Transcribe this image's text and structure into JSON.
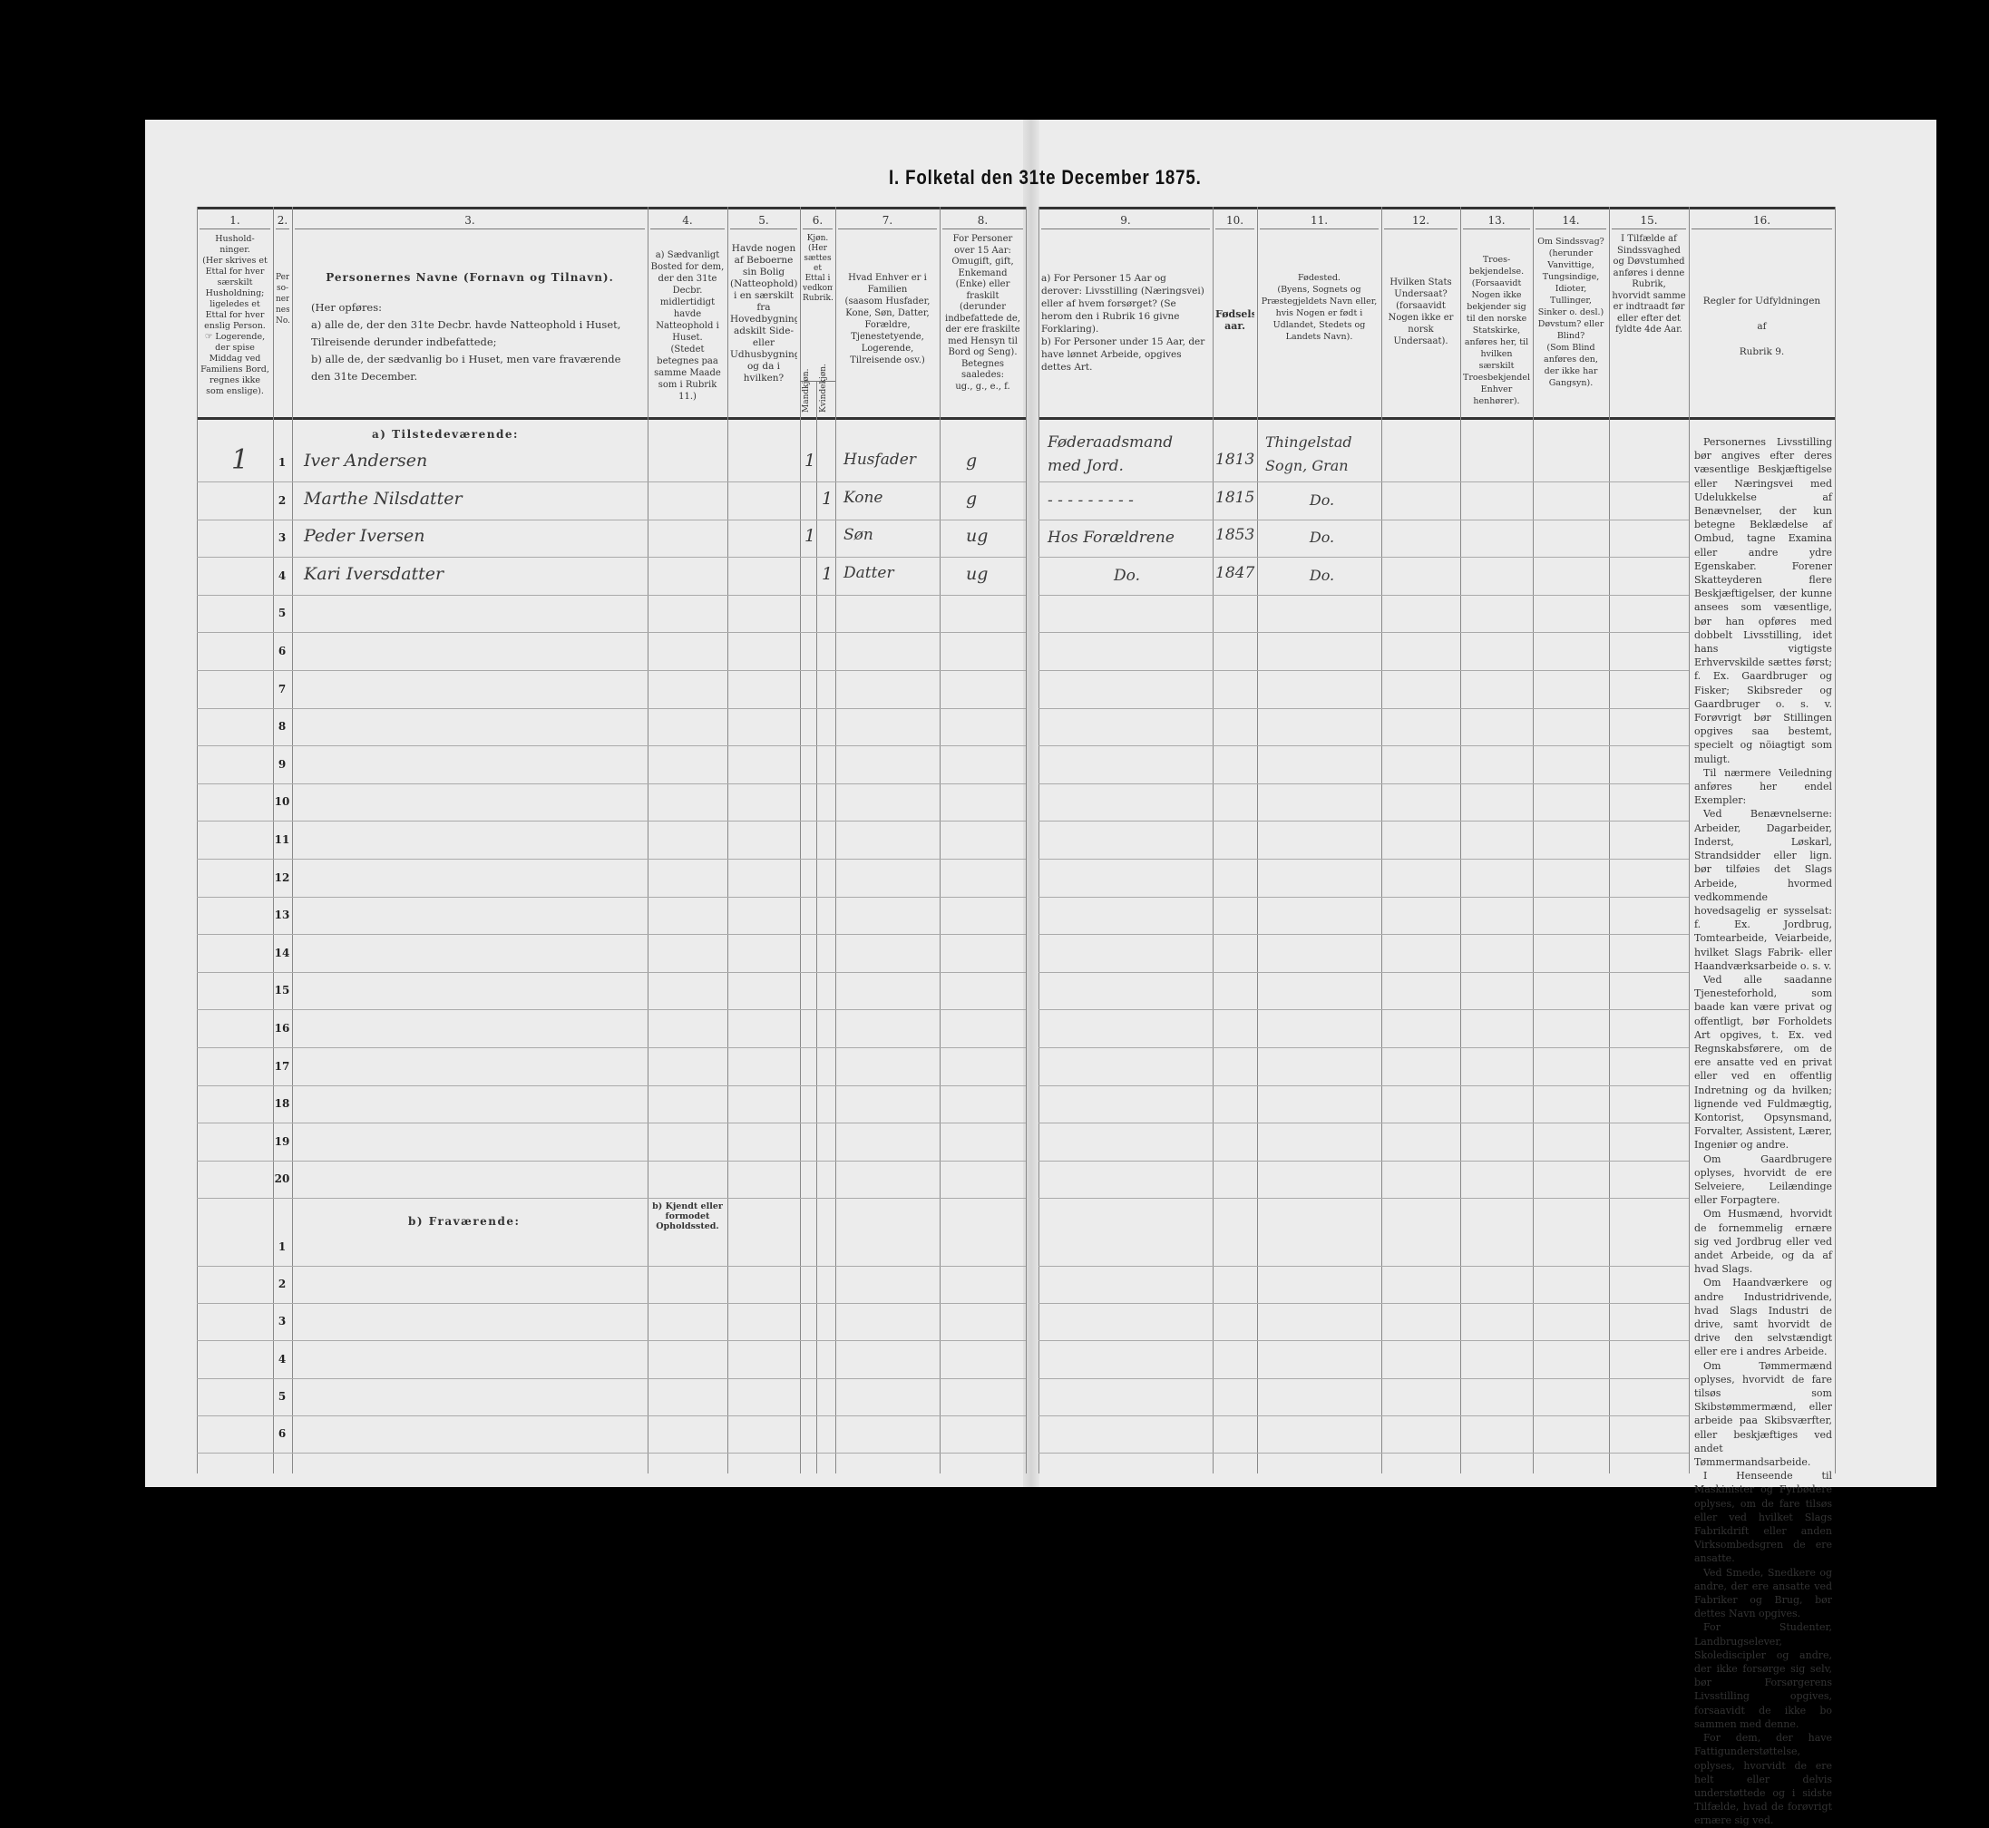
{
  "title": "I. Folketal den 31te December 1875.",
  "column_numbers": [
    "1.",
    "2.",
    "3.",
    "4.",
    "5.",
    "6.",
    "7.",
    "8.",
    "9.",
    "10.",
    "11.",
    "12.",
    "13.",
    "14.",
    "15.",
    "16."
  ],
  "headers": {
    "c1": "Hushold-\nninger.\n(Her skrives et Ettal for hver særskilt Husholdning; ligeledes et Ettal for hver enslig Person.\n☞ Logerende, der spise Middag ved Familiens Bord, regnes ikke som enslige).",
    "c2": "Per-\nso-\nner-\nnes\nNo.",
    "c3_title": "Personernes Navne (Fornavn og Tilnavn).",
    "c3_body": "(Her opføres:\na) alle de, der den 31te Decbr. havde Natteophold i Huset, Tilreisende derunder indbefattede;\nb) alle de, der sædvanlig bo i Huset, men vare fraværende den 31te December.",
    "c4": "a) Sædvanligt Bosted for dem, der den 31te Decbr. midlertidigt havde Natteophold i Huset.\n(Stedet betegnes paa samme Maade som i Rubrik 11.)",
    "c5": "Havde nogen af Beboerne sin Bolig (Natteophold) i en særskilt fra Hovedbygningen adskilt Side- eller Udhusbygning? og da i hvilken?",
    "c6": "Kjøn.\n(Her sættes et Ettal i vedkommende Rubrik.",
    "c6_male": "Mandkjøn.",
    "c6_female": "Kvindekjøn.",
    "c7": "Hvad Enhver er i Familien\n(saasom Husfader, Kone, Søn, Datter, Forældre, Tjenestetyende, Logerende, Tilreisende osv.)",
    "c8": "For Personer over 15 Aar: Omugift, gift, Enkemand (Enke) eller fraskilt (derunder indbefattede de, der ere fraskilte med Hensyn til Bord og Seng).\nBetegnes saaledes:\nug., g., e., f.",
    "c9": "a) For Personer 15 Aar og derover: Livsstilling (Næringsvei) eller af hvem forsørget? (Se herom den i Rubrik 16 givne Forklaring).\nb) For Personer under 15 Aar, der have lønnet Arbeide, opgives dettes Art.",
    "c10": "Fødsels-\naar.",
    "c11": "Fødested.\n(Byens, Sognets og Præstegjeldets Navn eller, hvis Nogen er født i Udlandet, Stedets og Landets Navn).",
    "c12": "Hvilken Stats Undersaat?\n(forsaavidt Nogen ikke er norsk Undersaat).",
    "c13": "Troes-\nbekjendelse.\n(Forsaavidt Nogen ikke bekjender sig til den norske Statskirke, anføres her, til hvilken særskilt Troesbekjendelse Enhver henhører).",
    "c14": "Om Sindssvag? (herunder Vanvittige, Tungsindige, Idioter, Tullinger, Sinker o. desl.)\nDøvstum? eller Blind?\n(Som Blind anføres den, der ikke har Gangsyn).",
    "c15": "I Tilfælde af Sindssvaghed og Døvstumhed anføres i denne Rubrik, hvorvidt samme er indtraadt før eller efter det fyldte 4de Aar.",
    "c16": "Regler for Udfyldningen\naf\nRubrik 9."
  },
  "sections": {
    "present": "a) Tilstedeværende:",
    "absent": "b) Fraværende:",
    "absent_c4": "b) Kjendt eller formodet Opholdssted."
  },
  "present_row_numbers": [
    "1",
    "2",
    "3",
    "4",
    "5",
    "6",
    "7",
    "8",
    "9",
    "10",
    "11",
    "12",
    "13",
    "14",
    "15",
    "16",
    "17",
    "18",
    "19",
    "20"
  ],
  "absent_row_numbers": [
    "1",
    "2",
    "3",
    "4",
    "5",
    "6"
  ],
  "household_mark": "1",
  "persons": [
    {
      "name": "Iver Andersen",
      "male": "1",
      "female": "",
      "family_role": "Husfader",
      "marital": "g",
      "occupation": "Føderaadsmand med Jord.",
      "birth_year": "1813",
      "birthplace": "Thingelstad Sogn, Gran"
    },
    {
      "name": "Marthe Nilsdatter",
      "male": "",
      "female": "1",
      "family_role": "Kone",
      "marital": "g",
      "occupation": "- - - - - - - - -",
      "birth_year": "1815",
      "birthplace": "Do."
    },
    {
      "name": "Peder Iversen",
      "male": "1",
      "female": "",
      "family_role": "Søn",
      "marital": "ug",
      "occupation": "Hos Forældrene",
      "birth_year": "1853",
      "birthplace": "Do."
    },
    {
      "name": "Kari Iversdatter",
      "male": "",
      "female": "1",
      "family_role": "Datter",
      "marital": "ug",
      "occupation": "Do.",
      "birth_year": "1847",
      "birthplace": "Do."
    }
  ],
  "rubric16_rules": [
    "Personernes Livsstilling bør angives efter deres væsentlige Beskjæftigelse eller Næringsvei med Udelukkelse af Benævnelser, der kun betegne Beklædelse af Ombud, tagne Examina eller andre ydre Egenskaber. Forener Skatteyderen flere Beskjæftigelser, der kunne ansees som væsentlige, bør han opføres med dobbelt Livsstilling, idet hans vigtigste Erhvervskilde sættes først; f. Ex. Gaardbruger og Fisker; Skibsreder og Gaardbruger o. s. v. Forøvrigt bør Stillingen opgives saa bestemt, specielt og nöiagtigt som muligt.",
    "Til nærmere Veiledning anføres her endel Exempler:",
    "Ved Benævnelserne: Arbeider, Dagarbeider, Inderst, Løskarl, Strandsidder eller lign. bør tilføies det Slags Arbeide, hvormed vedkommende hovedsagelig er sysselsat: f. Ex. Jordbrug, Tomtearbeide, Veiarbeide, hvilket Slags Fabrik- eller Haandværksarbeide o. s. v.",
    "Ved alle saadanne Tjenesteforhold, som baade kan være privat og offentligt, bør Forholdets Art opgives, t. Ex. ved Regnskabsførere, om de ere ansatte ved en privat eller ved en offentlig Indretning og da hvilken; lignende ved Fuldmægtig, Kontorist, Opsynsmand, Forvalter, Assistent, Lærer, Ingeniør og andre.",
    "Om Gaardbrugere oplyses, hvorvidt de ere Selveiere, Leilændinge eller Forpagtere.",
    "Om Husmænd, hvorvidt de fornemmelig ernære sig ved Jordbrug eller ved andet Arbeide, og da af hvad Slags.",
    "Om Haandværkere og andre Industridrivende, hvad Slags Industri de drive, samt hvorvidt de drive den selvstændigt eller ere i andres Arbeide.",
    "Om Tømmermænd oplyses, hvorvidt de fare tilsøs som Skibstømmermænd, eller arbeide paa Skibsværfter, eller beskjæftiges ved andet Tømmermandsarbeide.",
    "I Henseende til Maskinister og Fyrbødere oplyses, om de fare tilsøs eller ved hvilket Slags Fabrikdrift eller anden Virksombedsgren de ere ansatte.",
    "Ved Smede, Snedkere og andre, der ere ansatte ved Fabriker og Brug, bør dettes Navn opgives.",
    "For Studenter, Landbrugselever, Skolediscipler og andre, der ikke forsørge sig selv, bør Forsørgerens Livsstilling opgives, forsaavidt de ikke bo sammen med denne.",
    "For dem, der have Fattigunderstøttelse, oplyses, hvorvidt de ere helt eller delvis understøttede og i sidste Tilfælde, hvad de forøvrigt ernære sig ved."
  ]
}
